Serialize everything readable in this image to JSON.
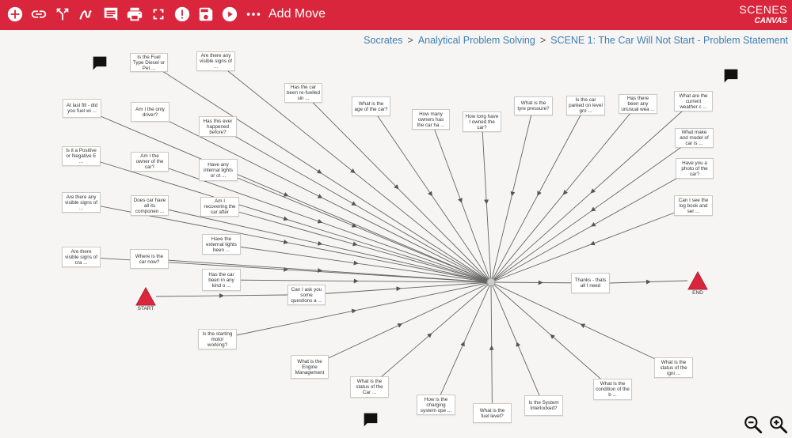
{
  "toolbar": {
    "icons": [
      "add-icon",
      "link-icon",
      "branch-icon",
      "path-icon",
      "comment-icon",
      "print-icon",
      "fullscreen-icon",
      "alert-icon",
      "save-icon",
      "play-icon",
      "more-icon"
    ],
    "add_move_label": "Add Move",
    "brand_title": "SCENES",
    "brand_subtitle": "CANVAS",
    "accent_color": "#d9263c"
  },
  "breadcrumb": {
    "items": [
      "Socrates",
      "Analytical Problem Solving",
      "SCENE 1: The Car Will Not Start - Problem Statement"
    ],
    "separator": ">"
  },
  "diagram": {
    "start_label": "START",
    "end_label": "END",
    "nodes": [
      {
        "id": "n1",
        "text": "Is the Fuel Type Diesel or Pet ..."
      },
      {
        "id": "n2",
        "text": "Are there any visible signs of ..."
      },
      {
        "id": "n3",
        "text": "At last fill - did you fuel wi ..."
      },
      {
        "id": "n4",
        "text": "Am I the only driver?"
      },
      {
        "id": "n5",
        "text": "Has this ever happened before?"
      },
      {
        "id": "n6",
        "text": "Has the car been re-fuelled sin ..."
      },
      {
        "id": "n7",
        "text": "What is the age of the car?"
      },
      {
        "id": "n8",
        "text": "How many owners has the car ha ..."
      },
      {
        "id": "n9",
        "text": "How long have I owned the car?"
      },
      {
        "id": "n10",
        "text": "What is the tyre pressure?"
      },
      {
        "id": "n11",
        "text": "Is the car parked on level gro ..."
      },
      {
        "id": "n12",
        "text": "Has there been any unusual wea ..."
      },
      {
        "id": "n13",
        "text": "What are the current weather c ..."
      },
      {
        "id": "n14",
        "text": "What make and model of car is ..."
      },
      {
        "id": "n15",
        "text": "Have you a photo of the car?"
      },
      {
        "id": "n16",
        "text": "Can I see the log book and ser ..."
      },
      {
        "id": "n17",
        "text": "Is it a Positive or Negative E ..."
      },
      {
        "id": "n18",
        "text": "Am I the owner of the car?"
      },
      {
        "id": "n19",
        "text": "Have any internal lights or ot ..."
      },
      {
        "id": "n20",
        "text": "Are there any visible signs of ..."
      },
      {
        "id": "n21",
        "text": "Does car have all its componen ..."
      },
      {
        "id": "n22",
        "text": "Am I recovering the car after"
      },
      {
        "id": "n23",
        "text": "Have the external lights been ..."
      },
      {
        "id": "n24",
        "text": "Are there visible signs of cra ..."
      },
      {
        "id": "n25",
        "text": "Where is the car now?"
      },
      {
        "id": "n26",
        "text": "Has the car been in any kind o ..."
      },
      {
        "id": "n27",
        "text": "Can I ask you some questions a ..."
      },
      {
        "id": "n28",
        "text": "Thanks - thats all I need"
      },
      {
        "id": "n29",
        "text": "Is the starting motor working?"
      },
      {
        "id": "n30",
        "text": "What is the Engine Management"
      },
      {
        "id": "n31",
        "text": "What is the status of the Car ..."
      },
      {
        "id": "n32",
        "text": "How is the charging system ope ..."
      },
      {
        "id": "n33",
        "text": "What is the fuel level?"
      },
      {
        "id": "n34",
        "text": "Is the System Interlocked?"
      },
      {
        "id": "n35",
        "text": "What is the condition of the b ..."
      },
      {
        "id": "n36",
        "text": "What is the status of the igni ..."
      }
    ]
  }
}
